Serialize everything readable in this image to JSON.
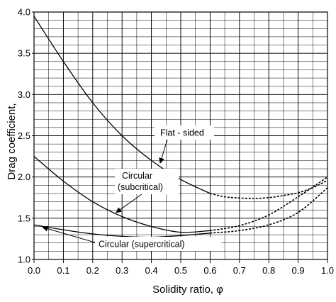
{
  "chart_data": {
    "type": "line",
    "title": "",
    "xlabel": "Solidity ratio,  φ",
    "ylabel": "Drag coefficient,",
    "xlim": [
      0.0,
      1.0
    ],
    "ylim": [
      1.0,
      4.0
    ],
    "x_ticks": [
      "0.0",
      "0.1",
      "0.2",
      "0.3",
      "0.4",
      "0.5",
      "0.6",
      "0.7",
      "0.8",
      "0.9",
      "1.0"
    ],
    "y_ticks": [
      "1.0",
      "1.5",
      "2.0",
      "2.5",
      "3.0",
      "3.5",
      "4.0"
    ],
    "grid": {
      "minor_x_step": 0.05,
      "minor_y_step": 0.1
    },
    "series": [
      {
        "name": "Flat - sided",
        "solid": [
          [
            0.0,
            3.95
          ],
          [
            0.1,
            3.4
          ],
          [
            0.2,
            2.9
          ],
          [
            0.3,
            2.5
          ],
          [
            0.4,
            2.2
          ],
          [
            0.5,
            1.97
          ],
          [
            0.6,
            1.8
          ]
        ],
        "dashed": [
          [
            0.6,
            1.8
          ],
          [
            0.65,
            1.76
          ],
          [
            0.7,
            1.745
          ],
          [
            0.75,
            1.74
          ],
          [
            0.8,
            1.75
          ],
          [
            0.85,
            1.775
          ],
          [
            0.9,
            1.81
          ],
          [
            0.95,
            1.87
          ],
          [
            1.0,
            1.96
          ]
        ]
      },
      {
        "name": "Circular (subcritical)",
        "solid": [
          [
            0.0,
            2.25
          ],
          [
            0.1,
            1.95
          ],
          [
            0.2,
            1.7
          ],
          [
            0.3,
            1.52
          ],
          [
            0.4,
            1.4
          ],
          [
            0.5,
            1.33
          ],
          [
            0.6,
            1.35
          ]
        ],
        "dashed": [
          [
            0.6,
            1.35
          ],
          [
            0.7,
            1.41
          ],
          [
            0.8,
            1.54
          ],
          [
            0.9,
            1.76
          ],
          [
            1.0,
            2.0
          ]
        ]
      },
      {
        "name": "Circular (supercritical)",
        "solid": [
          [
            0.0,
            1.42
          ],
          [
            0.1,
            1.36
          ],
          [
            0.2,
            1.31
          ],
          [
            0.3,
            1.28
          ],
          [
            0.4,
            1.27
          ],
          [
            0.5,
            1.29
          ],
          [
            0.6,
            1.32
          ]
        ],
        "dashed": [
          [
            0.6,
            1.32
          ],
          [
            0.7,
            1.35
          ],
          [
            0.8,
            1.42
          ],
          [
            0.9,
            1.57
          ],
          [
            1.0,
            1.87
          ]
        ]
      }
    ],
    "annotations": [
      {
        "text": "Flat - sided",
        "points_to": [
          0.43,
          2.17
        ]
      },
      {
        "text": "Circular",
        "text2": "(subcritical)",
        "points_to": [
          0.28,
          1.57
        ]
      },
      {
        "text": "Circular (supercritical)",
        "points_to": [
          0.03,
          1.39
        ]
      }
    ]
  }
}
